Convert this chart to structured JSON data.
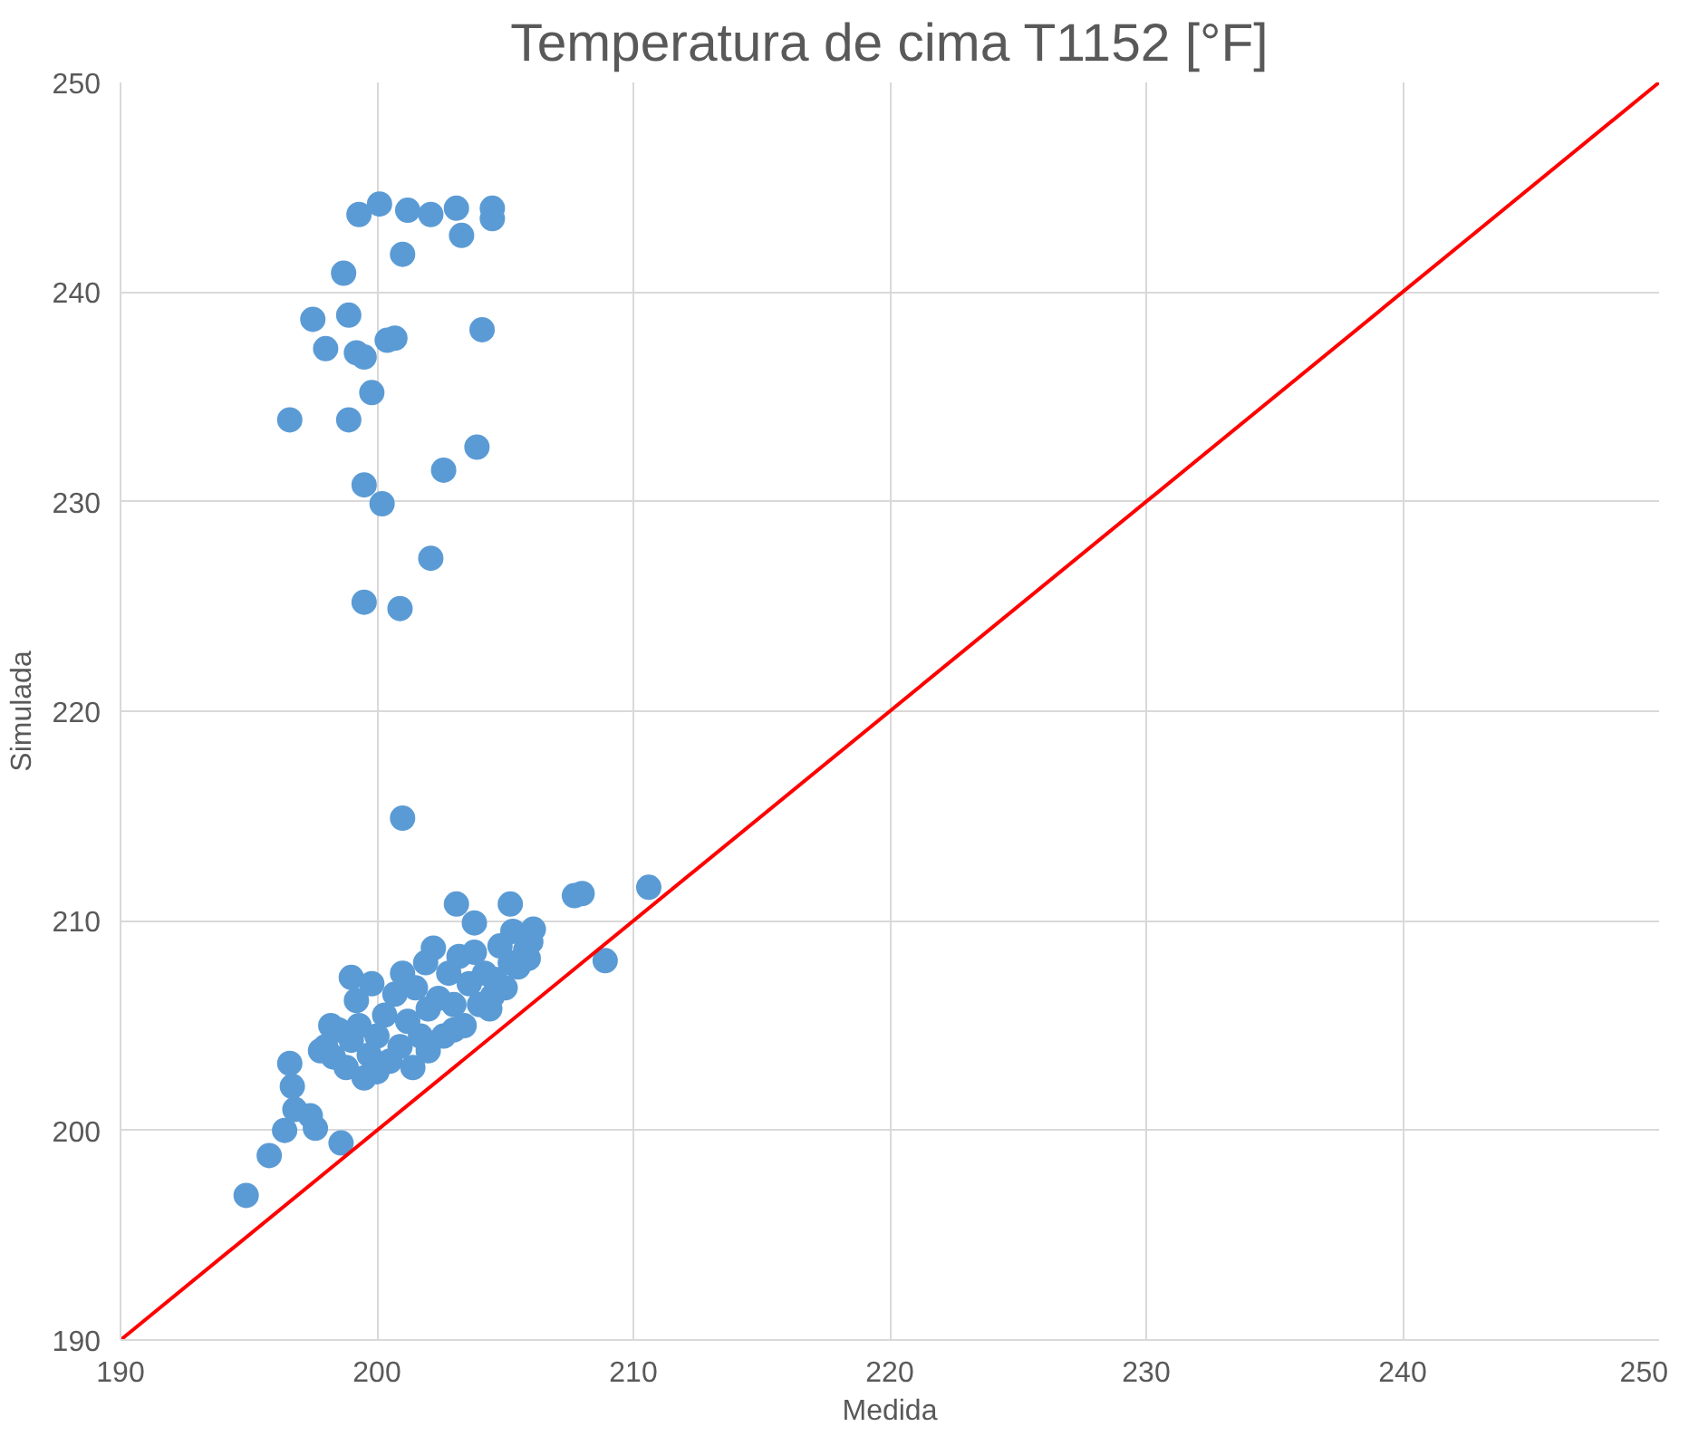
{
  "chart_data": {
    "type": "scatter",
    "title": "Temperatura de cima T1152 [°F]",
    "xlabel": "Medida",
    "ylabel": "Simulada",
    "xlim": [
      190,
      250
    ],
    "ylim": [
      190,
      250
    ],
    "xticks": [
      190,
      200,
      210,
      220,
      230,
      240,
      250
    ],
    "yticks": [
      190,
      200,
      210,
      220,
      230,
      240,
      250
    ],
    "grid": true,
    "series": [
      {
        "marker": "circle",
        "color": "#5b9bd5",
        "x": [
          199.3,
          200.1,
          201.2,
          202.1,
          203.1,
          203.3,
          204.5,
          204.5,
          201.0,
          198.7,
          197.5,
          198.9,
          198.0,
          199.2,
          199.5,
          200.4,
          200.7,
          204.1,
          199.8,
          196.6,
          198.9,
          203.9,
          202.6,
          199.5,
          200.2,
          202.1,
          199.5,
          200.9,
          201.0,
          194.9,
          195.8,
          198.6,
          196.4,
          196.8,
          196.6,
          196.7,
          197.4,
          197.6,
          199.0,
          208.9,
          210.6,
          207.7,
          208.0,
          203.1,
          203.8,
          205.2,
          206.1,
          205.9,
          198.0,
          198.3,
          198.5,
          198.8,
          199.0,
          199.3,
          199.5,
          199.7,
          200.0,
          200.0,
          200.3,
          200.5,
          200.7,
          200.9,
          201.0,
          201.2,
          201.4,
          201.5,
          201.7,
          201.9,
          202.0,
          202.2,
          202.4,
          202.6,
          202.8,
          203.0,
          203.2,
          203.4,
          203.6,
          203.8,
          204.0,
          204.2,
          204.4,
          204.6,
          204.8,
          205.0,
          205.3,
          205.5,
          205.8,
          206.0,
          199.2,
          199.8,
          202.0,
          198.2,
          197.8,
          203.0,
          204.5,
          205.2
        ],
        "values": [
          243.7,
          244.2,
          243.9,
          243.7,
          244.0,
          242.7,
          244.0,
          243.5,
          241.8,
          240.9,
          238.7,
          238.9,
          237.3,
          237.1,
          236.9,
          237.7,
          237.8,
          238.2,
          235.2,
          233.9,
          233.9,
          232.6,
          231.5,
          230.8,
          229.9,
          227.3,
          225.2,
          224.9,
          214.9,
          196.9,
          198.8,
          199.4,
          200.0,
          201.0,
          203.2,
          202.1,
          200.7,
          200.1,
          207.3,
          208.1,
          211.6,
          211.2,
          211.3,
          210.8,
          209.9,
          210.8,
          209.6,
          208.2,
          204.0,
          203.5,
          204.8,
          203.0,
          204.3,
          205.0,
          202.5,
          203.6,
          204.5,
          202.8,
          205.5,
          203.3,
          206.5,
          204.0,
          207.5,
          205.2,
          203.0,
          206.8,
          204.5,
          208.0,
          205.8,
          208.7,
          206.3,
          204.5,
          207.5,
          206.0,
          208.3,
          205.0,
          207.0,
          208.5,
          206.0,
          207.5,
          205.8,
          207.2,
          208.8,
          206.8,
          209.5,
          207.8,
          208.6,
          209.0,
          206.2,
          207.0,
          203.8,
          205.0,
          203.8,
          204.8,
          206.4,
          208.0
        ]
      },
      {
        "type": "line",
        "color": "#ff0000",
        "x": [
          190,
          250
        ],
        "values": [
          190,
          250
        ]
      }
    ]
  }
}
